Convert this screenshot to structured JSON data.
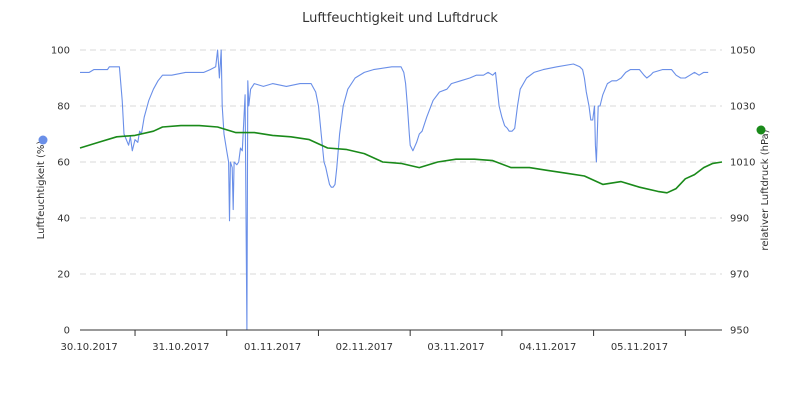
{
  "chart_data": {
    "type": "line",
    "title": "Luftfeuchtigkeit und Luftdruck",
    "x_categories": [
      "30.10.2017",
      "31.10.2017",
      "01.11.2017",
      "02.11.2017",
      "03.11.2017",
      "04.11.2017",
      "05.11.2017"
    ],
    "x_range": [
      29.4,
      36.4
    ],
    "y_left": {
      "label": "Luftfeuchtigkeit (%)",
      "ylim": [
        0,
        100
      ],
      "ticks": [
        0,
        20,
        40,
        60,
        80,
        100
      ]
    },
    "y_right": {
      "label": "relativer Luftdruck (hPa)",
      "ylim": [
        950,
        1050
      ],
      "ticks": [
        950,
        970,
        990,
        1010,
        1030,
        1050
      ]
    },
    "grid": true,
    "legend_placement": "axis-markers",
    "series": [
      {
        "name": "Luftfeuchtigkeit",
        "axis": "left",
        "color": "#6a8fe8",
        "points": [
          [
            29.4,
            92
          ],
          [
            29.5,
            92
          ],
          [
            29.55,
            93
          ],
          [
            29.7,
            93
          ],
          [
            29.72,
            94
          ],
          [
            29.83,
            94
          ],
          [
            29.86,
            82
          ],
          [
            29.88,
            70
          ],
          [
            29.93,
            66
          ],
          [
            29.95,
            69
          ],
          [
            29.97,
            64
          ],
          [
            30.0,
            68
          ],
          [
            30.03,
            67
          ],
          [
            30.05,
            71
          ],
          [
            30.07,
            70
          ],
          [
            30.1,
            76
          ],
          [
            30.15,
            82
          ],
          [
            30.2,
            86
          ],
          [
            30.25,
            89
          ],
          [
            30.3,
            91
          ],
          [
            30.4,
            91
          ],
          [
            30.55,
            92
          ],
          [
            30.75,
            92
          ],
          [
            30.82,
            93
          ],
          [
            30.88,
            94
          ],
          [
            30.9,
            100
          ],
          [
            30.92,
            90
          ],
          [
            30.94,
            100
          ],
          [
            30.95,
            80
          ],
          [
            30.97,
            70
          ],
          [
            30.99,
            66
          ],
          [
            31.0,
            64
          ],
          [
            31.02,
            60
          ],
          [
            31.03,
            39
          ],
          [
            31.04,
            60
          ],
          [
            31.06,
            58
          ],
          [
            31.07,
            43
          ],
          [
            31.08,
            60
          ],
          [
            31.11,
            59
          ],
          [
            31.13,
            60
          ],
          [
            31.15,
            65
          ],
          [
            31.17,
            64
          ],
          [
            31.2,
            84
          ],
          [
            31.22,
            0
          ],
          [
            31.23,
            89
          ],
          [
            31.24,
            80
          ],
          [
            31.26,
            86
          ],
          [
            31.3,
            88
          ],
          [
            31.4,
            87
          ],
          [
            31.5,
            88
          ],
          [
            31.65,
            87
          ],
          [
            31.8,
            88
          ],
          [
            31.92,
            88
          ],
          [
            31.97,
            85
          ],
          [
            32.0,
            80
          ],
          [
            32.03,
            70
          ],
          [
            32.06,
            60
          ],
          [
            32.08,
            58
          ],
          [
            32.1,
            55
          ],
          [
            32.12,
            52
          ],
          [
            32.14,
            51
          ],
          [
            32.16,
            51
          ],
          [
            32.18,
            52
          ],
          [
            32.2,
            58
          ],
          [
            32.23,
            70
          ],
          [
            32.27,
            80
          ],
          [
            32.32,
            86
          ],
          [
            32.4,
            90
          ],
          [
            32.5,
            92
          ],
          [
            32.6,
            93
          ],
          [
            32.8,
            94
          ],
          [
            32.9,
            94
          ],
          [
            32.93,
            92
          ],
          [
            32.95,
            88
          ],
          [
            32.97,
            80
          ],
          [
            32.99,
            70
          ],
          [
            33.0,
            66
          ],
          [
            33.03,
            64
          ],
          [
            33.07,
            67
          ],
          [
            33.1,
            70
          ],
          [
            33.13,
            71
          ],
          [
            33.18,
            76
          ],
          [
            33.25,
            82
          ],
          [
            33.32,
            85
          ],
          [
            33.4,
            86
          ],
          [
            33.45,
            88
          ],
          [
            33.55,
            89
          ],
          [
            33.65,
            90
          ],
          [
            33.72,
            91
          ],
          [
            33.8,
            91
          ],
          [
            33.85,
            92
          ],
          [
            33.9,
            91
          ],
          [
            33.93,
            92
          ],
          [
            33.95,
            86
          ],
          [
            33.97,
            80
          ],
          [
            34.0,
            76
          ],
          [
            34.03,
            73
          ],
          [
            34.06,
            72
          ],
          [
            34.08,
            71
          ],
          [
            34.11,
            71
          ],
          [
            34.14,
            72
          ],
          [
            34.17,
            80
          ],
          [
            34.2,
            86
          ],
          [
            34.27,
            90
          ],
          [
            34.35,
            92
          ],
          [
            34.45,
            93
          ],
          [
            34.6,
            94
          ],
          [
            34.78,
            95
          ],
          [
            34.85,
            94
          ],
          [
            34.88,
            93
          ],
          [
            34.9,
            90
          ],
          [
            34.92,
            85
          ],
          [
            34.95,
            80
          ],
          [
            34.97,
            75
          ],
          [
            34.99,
            75
          ],
          [
            35.01,
            80
          ],
          [
            35.02,
            66
          ],
          [
            35.03,
            60
          ],
          [
            35.05,
            80
          ],
          [
            35.07,
            80
          ],
          [
            35.1,
            84
          ],
          [
            35.15,
            88
          ],
          [
            35.2,
            89
          ],
          [
            35.25,
            89
          ],
          [
            35.3,
            90
          ],
          [
            35.35,
            92
          ],
          [
            35.4,
            93
          ],
          [
            35.5,
            93
          ],
          [
            35.55,
            91
          ],
          [
            35.58,
            90
          ],
          [
            35.62,
            91
          ],
          [
            35.65,
            92
          ],
          [
            35.75,
            93
          ],
          [
            35.85,
            93
          ],
          [
            35.9,
            91
          ],
          [
            35.95,
            90
          ],
          [
            36.0,
            90
          ],
          [
            36.05,
            91
          ],
          [
            36.1,
            92
          ],
          [
            36.15,
            91
          ],
          [
            36.2,
            92
          ],
          [
            36.25,
            92
          ]
        ]
      },
      {
        "name": "relativer Luftdruck",
        "axis": "right",
        "color": "#1a8a1a",
        "points": [
          [
            29.4,
            1015.0
          ],
          [
            29.6,
            1017.0
          ],
          [
            29.8,
            1019.0
          ],
          [
            30.0,
            1019.5
          ],
          [
            30.2,
            1021.0
          ],
          [
            30.3,
            1022.5
          ],
          [
            30.5,
            1023.0
          ],
          [
            30.7,
            1023.0
          ],
          [
            30.9,
            1022.5
          ],
          [
            31.1,
            1020.5
          ],
          [
            31.3,
            1020.5
          ],
          [
            31.5,
            1019.5
          ],
          [
            31.7,
            1019.0
          ],
          [
            31.9,
            1018.0
          ],
          [
            32.1,
            1015.0
          ],
          [
            32.3,
            1014.5
          ],
          [
            32.5,
            1013.0
          ],
          [
            32.7,
            1010.0
          ],
          [
            32.9,
            1009.5
          ],
          [
            33.1,
            1008.0
          ],
          [
            33.3,
            1010.0
          ],
          [
            33.5,
            1011.0
          ],
          [
            33.7,
            1011.0
          ],
          [
            33.9,
            1010.5
          ],
          [
            34.1,
            1008.0
          ],
          [
            34.3,
            1008.0
          ],
          [
            34.5,
            1007.0
          ],
          [
            34.7,
            1006.0
          ],
          [
            34.9,
            1005.0
          ],
          [
            35.1,
            1002.0
          ],
          [
            35.3,
            1003.0
          ],
          [
            35.5,
            1001.0
          ],
          [
            35.7,
            999.5
          ],
          [
            35.8,
            999.0
          ],
          [
            35.9,
            1000.5
          ],
          [
            36.0,
            1004.0
          ],
          [
            36.1,
            1005.5
          ],
          [
            36.2,
            1008.0
          ],
          [
            36.3,
            1009.5
          ],
          [
            36.4,
            1010.0
          ]
        ]
      }
    ]
  }
}
